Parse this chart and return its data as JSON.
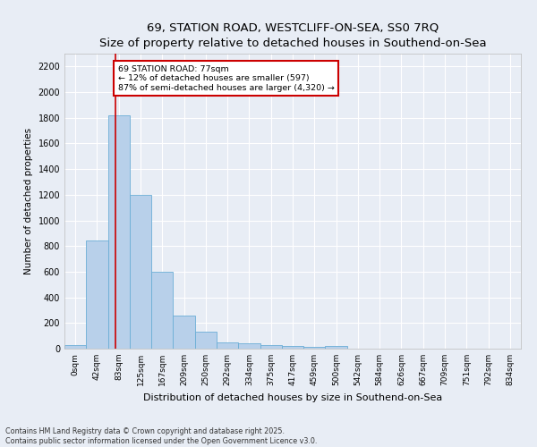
{
  "title": "69, STATION ROAD, WESTCLIFF-ON-SEA, SS0 7RQ",
  "subtitle": "Size of property relative to detached houses in Southend-on-Sea",
  "xlabel": "Distribution of detached houses by size in Southend-on-Sea",
  "ylabel": "Number of detached properties",
  "footnote1": "Contains HM Land Registry data © Crown copyright and database right 2025.",
  "footnote2": "Contains public sector information licensed under the Open Government Licence v3.0.",
  "bar_labels": [
    "0sqm",
    "42sqm",
    "83sqm",
    "125sqm",
    "167sqm",
    "209sqm",
    "250sqm",
    "292sqm",
    "334sqm",
    "375sqm",
    "417sqm",
    "459sqm",
    "500sqm",
    "542sqm",
    "584sqm",
    "626sqm",
    "667sqm",
    "709sqm",
    "751sqm",
    "792sqm",
    "834sqm"
  ],
  "bar_values": [
    25,
    840,
    1820,
    1200,
    600,
    255,
    135,
    50,
    42,
    30,
    20,
    15,
    20,
    0,
    0,
    0,
    0,
    0,
    0,
    0,
    0
  ],
  "bar_color": "#b8d0ea",
  "bar_edge_color": "#6baed6",
  "background_color": "#e8edf5",
  "grid_color": "#ffffff",
  "vline_x": 1.835,
  "vline_color": "#cc0000",
  "annotation_text": "69 STATION ROAD: 77sqm\n← 12% of detached houses are smaller (597)\n87% of semi-detached houses are larger (4,320) →",
  "annotation_box_color": "#ffffff",
  "annotation_box_edge": "#cc0000",
  "ylim": [
    0,
    2300
  ],
  "yticks": [
    0,
    200,
    400,
    600,
    800,
    1000,
    1200,
    1400,
    1600,
    1800,
    2000,
    2200
  ],
  "title_fontsize": 9.5,
  "label_fontsize": 7.5,
  "tick_fontsize": 6.5,
  "annotation_fontsize": 6.8,
  "footnote_fontsize": 5.8
}
